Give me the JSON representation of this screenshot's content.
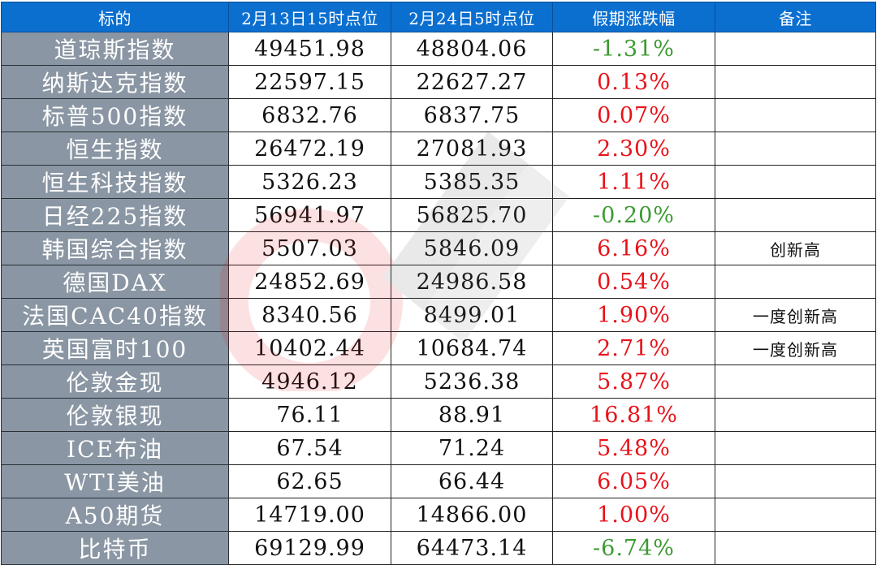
{
  "table": {
    "headers": [
      "标的",
      "2月13日15时点位",
      "2月24日5时点位",
      "假期涨跌幅",
      "备注"
    ],
    "rows": [
      {
        "name": "道琼斯指数",
        "before": "49451.98",
        "after": "48804.06",
        "change": "-1.31%",
        "direction": "down",
        "note": ""
      },
      {
        "name": "纳斯达克指数",
        "before": "22597.15",
        "after": "22627.27",
        "change": "0.13%",
        "direction": "up",
        "note": ""
      },
      {
        "name": "标普500指数",
        "before": "6832.76",
        "after": "6837.75",
        "change": "0.07%",
        "direction": "up",
        "note": ""
      },
      {
        "name": "恒生指数",
        "before": "26472.19",
        "after": "27081.93",
        "change": "2.30%",
        "direction": "up",
        "note": ""
      },
      {
        "name": "恒生科技指数",
        "before": "5326.23",
        "after": "5385.35",
        "change": "1.11%",
        "direction": "up",
        "note": ""
      },
      {
        "name": "日经225指数",
        "before": "56941.97",
        "after": "56825.70",
        "change": "-0.20%",
        "direction": "down",
        "note": ""
      },
      {
        "name": "韩国综合指数",
        "before": "5507.03",
        "after": "5846.09",
        "change": "6.16%",
        "direction": "up",
        "note": "创新高"
      },
      {
        "name": "德国DAX",
        "before": "24852.69",
        "after": "24986.58",
        "change": "0.54%",
        "direction": "up",
        "note": ""
      },
      {
        "name": "法国CAC40指数",
        "before": "8340.56",
        "after": "8499.01",
        "change": "1.90%",
        "direction": "up",
        "note": "一度创新高"
      },
      {
        "name": "英国富时100",
        "before": "10402.44",
        "after": "10684.74",
        "change": "2.71%",
        "direction": "up",
        "note": "一度创新高"
      },
      {
        "name": "伦敦金现",
        "before": "4946.12",
        "after": "5236.38",
        "change": "5.87%",
        "direction": "up",
        "note": ""
      },
      {
        "name": "伦敦银现",
        "before": "76.11",
        "after": "88.91",
        "change": "16.81%",
        "direction": "up",
        "note": ""
      },
      {
        "name": "ICE布油",
        "before": "67.54",
        "after": "71.24",
        "change": "5.48%",
        "direction": "up",
        "note": ""
      },
      {
        "name": "WTI美油",
        "before": "62.65",
        "after": "66.44",
        "change": "6.05%",
        "direction": "up",
        "note": ""
      },
      {
        "name": "A50期货",
        "before": "14719.00",
        "after": "14866.00",
        "change": "1.00%",
        "direction": "up",
        "note": ""
      },
      {
        "name": "比特币",
        "before": "69129.99",
        "after": "64473.14",
        "change": "-6.74%",
        "direction": "down",
        "note": ""
      }
    ]
  },
  "colors": {
    "header_bg": "#0b6fd0",
    "name_col_bg": "#8a96a3",
    "up": "#e8121a",
    "down": "#3d9a32"
  }
}
